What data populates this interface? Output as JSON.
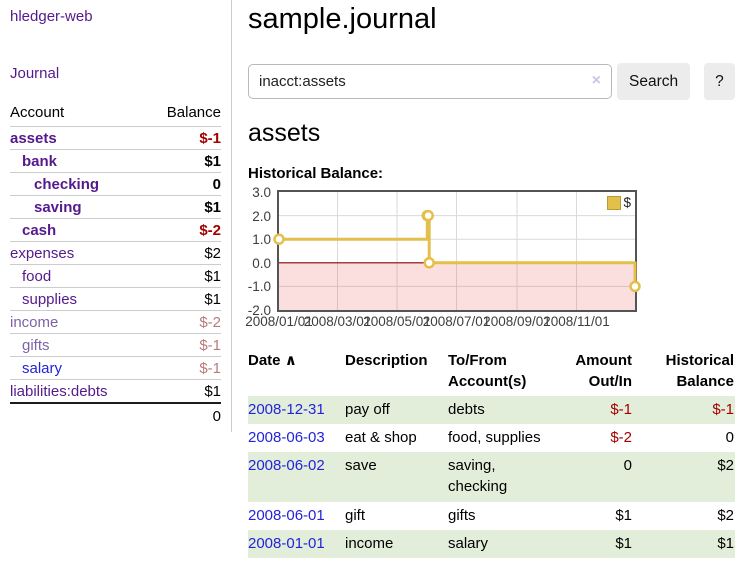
{
  "colors": {
    "purple": "#551a8b",
    "blue": "#2323dc",
    "neg": "#a40000",
    "negfaded": "#b87b7b",
    "gold": "#e3bf4b",
    "rowgreen": "#e2eed9"
  },
  "brand": "hledger-web",
  "sidebar": {
    "journal_label": "Journal",
    "accounts_header": {
      "account": "Account",
      "balance": "Balance"
    },
    "accounts": [
      {
        "name": "assets",
        "depth": 1,
        "balance": "$-1",
        "bold": true,
        "neg": "strong"
      },
      {
        "name": "bank",
        "depth": 2,
        "balance": "$1",
        "bold": true
      },
      {
        "name": "checking",
        "depth": 3,
        "balance": "0",
        "bold": true
      },
      {
        "name": "saving",
        "depth": 3,
        "balance": "$1",
        "bold": true
      },
      {
        "name": "cash",
        "depth": 2,
        "balance": "$-2",
        "bold": true,
        "neg": "strong"
      },
      {
        "name": "expenses",
        "depth": 1,
        "balance": "$2"
      },
      {
        "name": "food",
        "depth": 2,
        "balance": "$1"
      },
      {
        "name": "supplies",
        "depth": 2,
        "balance": "$1"
      },
      {
        "name": "income",
        "depth": 1,
        "balance": "$-2",
        "neg": "faded",
        "dim": true
      },
      {
        "name": "gifts",
        "depth": 2,
        "balance": "$-1",
        "neg": "faded",
        "dim": true
      },
      {
        "name": "salary",
        "depth": 2,
        "balance": "$-1",
        "neg": "faded",
        "style": "blue"
      },
      {
        "name": "liabilities:debts",
        "depth": 1,
        "balance": "$1"
      }
    ],
    "total": "0"
  },
  "header": {
    "title": "sample.journal"
  },
  "search": {
    "value": "inacct:assets",
    "clear_icon": "×",
    "button": "Search",
    "help_button": "?"
  },
  "account_page": {
    "heading": "assets",
    "chart_title": "Historical Balance:"
  },
  "chart_data": {
    "type": "line",
    "step": true,
    "title": "Historical Balance",
    "legend": "$",
    "legend_position": "top-right",
    "grid": true,
    "ylim": [
      -2,
      3
    ],
    "x_range": [
      "2008-01-01",
      "2008-12-31"
    ],
    "points": [
      {
        "date": "2008-01-01",
        "value": 1
      },
      {
        "date": "2008-06-01",
        "value": 2
      },
      {
        "date": "2008-06-02",
        "value": 2
      },
      {
        "date": "2008-06-03",
        "value": 0
      },
      {
        "date": "2008-12-31",
        "value": -1
      }
    ],
    "x_ticks": [
      {
        "date": "2008-01-01",
        "label": "2008/01/01"
      },
      {
        "date": "2008-03-01",
        "label": "2008/03/01"
      },
      {
        "date": "2008-05-01",
        "label": "2008/05/01"
      },
      {
        "date": "2008-07-01",
        "label": "2008/07/01"
      },
      {
        "date": "2008-09-01",
        "label": "2008/09/01"
      },
      {
        "date": "2008-11-01",
        "label": "2008/11/01"
      }
    ],
    "y_ticks": [
      {
        "value": 3,
        "label": "3.0"
      },
      {
        "value": 2,
        "label": "2.0"
      },
      {
        "value": 1,
        "label": "1.0"
      },
      {
        "value": 0,
        "label": "0.0"
      },
      {
        "value": -1,
        "label": "-1.0"
      },
      {
        "value": -2,
        "label": "-2.0"
      }
    ],
    "line_color": "#e3bf4b",
    "grid_color": "#d9d9d9",
    "zero_line_color": "#8b0000",
    "negative_fill": "rgba(235,75,75,0.18)"
  },
  "register": {
    "columns": [
      "Date",
      "Description",
      "To/From Account(s)",
      "Amount Out/In",
      "Historical Balance"
    ],
    "sort_caret": "∧",
    "rows": [
      {
        "date": "2008-12-31",
        "description": "pay off",
        "accounts": "debts",
        "amount": "$-1",
        "balance": "$-1",
        "amount_neg": true,
        "balance_neg": true
      },
      {
        "date": "2008-06-03",
        "description": "eat & shop",
        "accounts": "food, supplies",
        "amount": "$-2",
        "balance": "0",
        "amount_neg": true,
        "balance_neg": false
      },
      {
        "date": "2008-06-02",
        "description": "save",
        "accounts": "saving, checking",
        "amount": "0",
        "balance": "$2",
        "amount_neg": false,
        "balance_neg": false
      },
      {
        "date": "2008-06-01",
        "description": "gift",
        "accounts": "gifts",
        "amount": "$1",
        "balance": "$2",
        "amount_neg": false,
        "balance_neg": false
      },
      {
        "date": "2008-01-01",
        "description": "income",
        "accounts": "salary",
        "amount": "$1",
        "balance": "$1",
        "amount_neg": false,
        "balance_neg": false
      }
    ]
  }
}
